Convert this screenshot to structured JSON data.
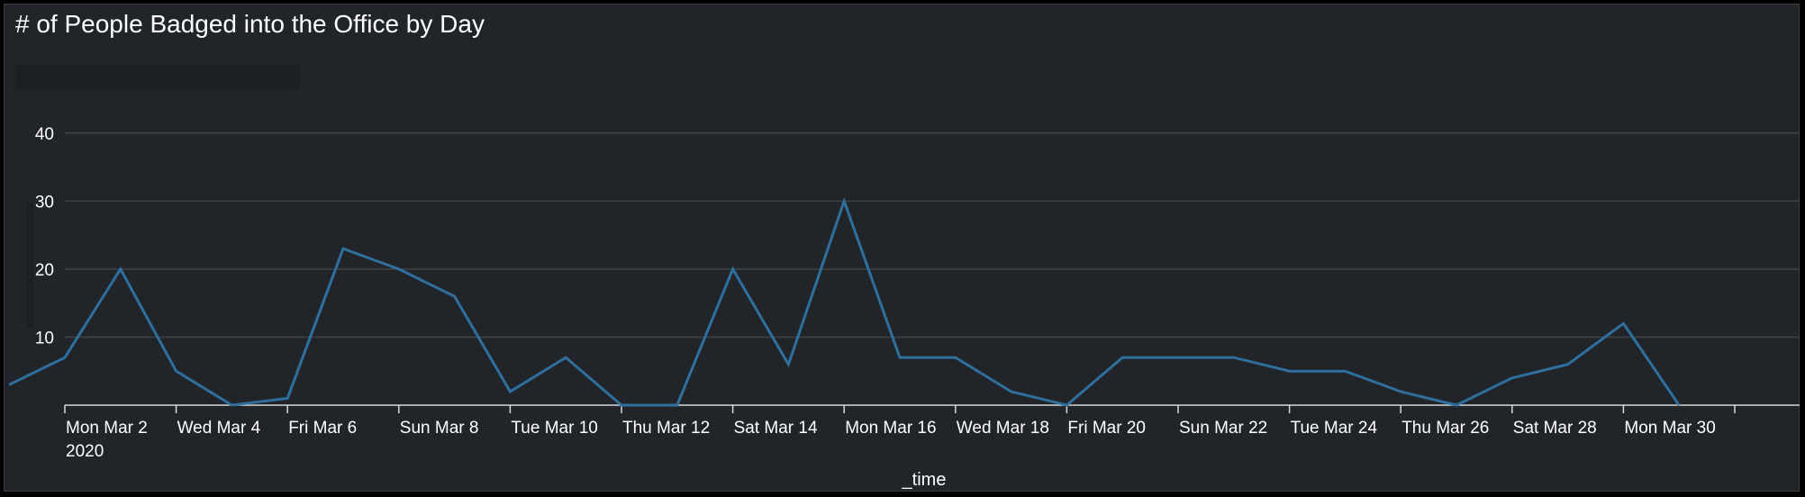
{
  "panel": {
    "title": "# of People Badged into the Office by Day"
  },
  "chart_data": {
    "type": "line",
    "title": "# of People Badged into the Office by Day",
    "xlabel": "_time",
    "ylabel": "",
    "ylim": [
      0,
      45
    ],
    "yticks": [
      10,
      20,
      30,
      40
    ],
    "grid": true,
    "legend": "none",
    "x": [
      "2020-03-01",
      "2020-03-02",
      "2020-03-03",
      "2020-03-04",
      "2020-03-05",
      "2020-03-06",
      "2020-03-07",
      "2020-03-08",
      "2020-03-09",
      "2020-03-10",
      "2020-03-11",
      "2020-03-12",
      "2020-03-13",
      "2020-03-14",
      "2020-03-15",
      "2020-03-16",
      "2020-03-17",
      "2020-03-18",
      "2020-03-19",
      "2020-03-20",
      "2020-03-21",
      "2020-03-22",
      "2020-03-23",
      "2020-03-24",
      "2020-03-25",
      "2020-03-26",
      "2020-03-27",
      "2020-03-28",
      "2020-03-29",
      "2020-03-30",
      "2020-03-31"
    ],
    "series": [
      {
        "values": [
          3,
          7,
          20,
          5,
          0,
          1,
          23,
          20,
          16,
          2,
          7,
          0,
          0,
          20,
          6,
          30,
          7,
          7,
          2,
          0,
          7,
          7,
          7,
          5,
          5,
          2,
          0,
          4,
          6,
          12,
          0
        ]
      }
    ],
    "xtick_labels": [
      "Mon Mar 2",
      "Wed Mar 4",
      "Fri Mar 6",
      "Sun Mar 8",
      "Tue Mar 10",
      "Thu Mar 12",
      "Sat Mar 14",
      "Mon Mar 16",
      "Wed Mar 18",
      "Fri Mar 20",
      "Sun Mar 22",
      "Tue Mar 24",
      "Thu Mar 26",
      "Sat Mar 28",
      "Mon Mar 30"
    ],
    "xtick_year": "2020",
    "colors": {
      "line": "#2f6f9e",
      "grid": "#3e4449",
      "axis": "#d8d8d8"
    }
  }
}
